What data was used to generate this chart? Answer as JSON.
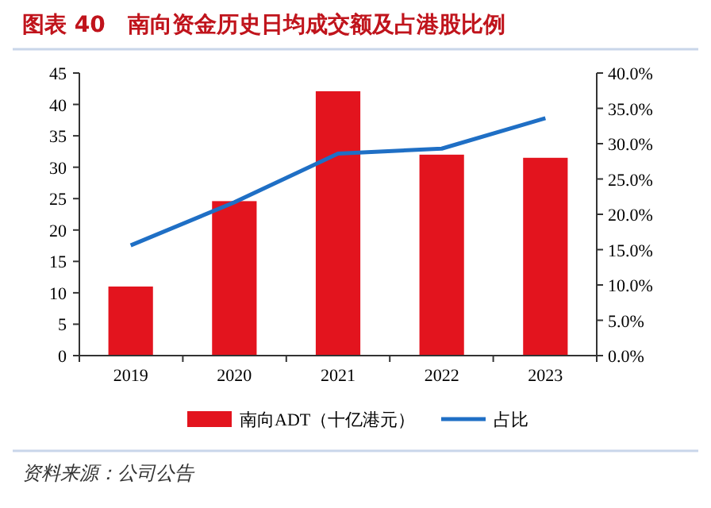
{
  "chart_data": {
    "type": "bar",
    "title": "图表 40　南向资金历史日均成交额及占港股比例",
    "categories": [
      "2019",
      "2020",
      "2021",
      "2022",
      "2023"
    ],
    "series": [
      {
        "name": "南向ADT（十亿港元）",
        "color": "#e3141e",
        "values": [
          11,
          24.6,
          42.1,
          32,
          31.5
        ]
      },
      {
        "name": "占比",
        "type": "line",
        "axis": "y2",
        "color": "#1f6fc5",
        "values": [
          15.6,
          21.7,
          28.6,
          29.3,
          33.6
        ]
      }
    ],
    "ylim": [
      0,
      45
    ],
    "yticks": [
      0,
      5,
      10,
      15,
      20,
      25,
      30,
      35,
      40,
      45
    ],
    "y2lim": [
      0,
      40
    ],
    "y2ticks": [
      {
        "value": 0,
        "label": "0.0%"
      },
      {
        "value": 5,
        "label": "5.0%"
      },
      {
        "value": 10,
        "label": "10.0%"
      },
      {
        "value": 15,
        "label": "15.0%"
      },
      {
        "value": 20,
        "label": "20.0%"
      },
      {
        "value": 25,
        "label": "25.0%"
      },
      {
        "value": 30,
        "label": "30.0%"
      },
      {
        "value": 35,
        "label": "35.0%"
      },
      {
        "value": 40,
        "label": "40.0%"
      }
    ],
    "legend": "bottom",
    "grid": false,
    "marker": "none",
    "annotations": [
      "资料来源：公司公告"
    ]
  }
}
